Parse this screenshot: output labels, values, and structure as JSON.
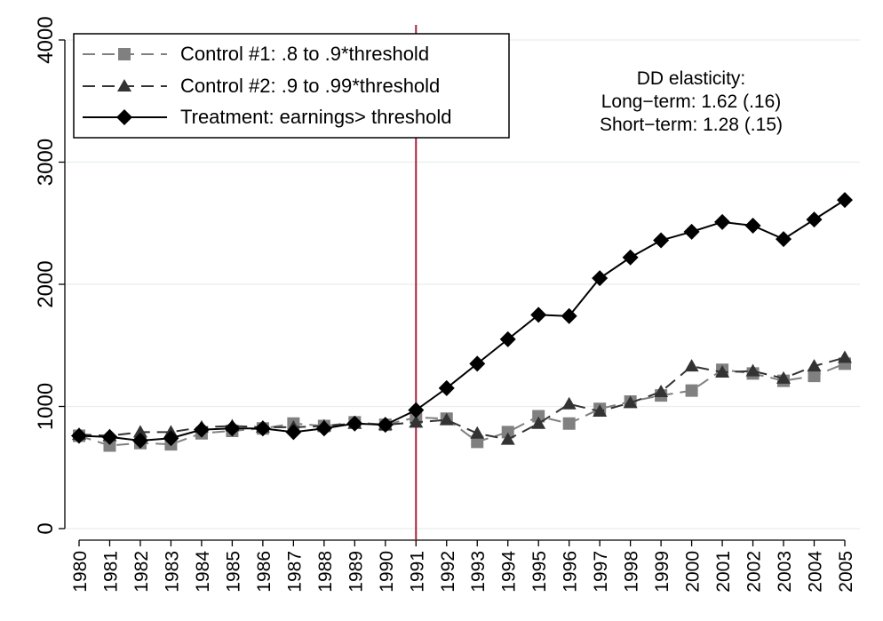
{
  "chart_data": {
    "type": "line",
    "x": [
      1980,
      1981,
      1982,
      1983,
      1984,
      1985,
      1986,
      1987,
      1988,
      1989,
      1990,
      1991,
      1992,
      1993,
      1994,
      1995,
      1996,
      1997,
      1998,
      1999,
      2000,
      2001,
      2002,
      2003,
      2004,
      2005
    ],
    "x_tick_labels": [
      "1980",
      "1981",
      "1982",
      "1983",
      "1984",
      "1985",
      "1986",
      "1987",
      "1988",
      "1989",
      "1990",
      "1991",
      "1992",
      "1993",
      "1994",
      "1995",
      "1996",
      "1997",
      "1998",
      "1999",
      "2000",
      "2001",
      "2002",
      "2003",
      "2004",
      "2005"
    ],
    "ylim": [
      0,
      4000
    ],
    "y_ticks": [
      0,
      1000,
      2000,
      3000,
      4000
    ],
    "y_tick_labels": [
      "0",
      "1000",
      "2000",
      "3000",
      "4000"
    ],
    "grid": true,
    "legend_position": "top-left",
    "vertical_line": {
      "x": 1991,
      "color": "#a4243b"
    },
    "series": [
      {
        "name": "Control #1: .8 to .9*threshold",
        "marker": "square",
        "line_style": "dashed",
        "color": "#808080",
        "values": [
          760,
          680,
          700,
          690,
          780,
          800,
          820,
          860,
          840,
          870,
          850,
          910,
          900,
          710,
          790,
          920,
          860,
          980,
          1040,
          1090,
          1130,
          1300,
          1270,
          1210,
          1250,
          1350
        ]
      },
      {
        "name": "Control #2: .9 to .99*threshold",
        "marker": "triangle",
        "line_style": "dashed",
        "color": "#333333",
        "values": [
          770,
          760,
          790,
          790,
          830,
          840,
          830,
          830,
          840,
          860,
          850,
          870,
          890,
          780,
          730,
          860,
          1020,
          960,
          1030,
          1120,
          1330,
          1280,
          1290,
          1230,
          1330,
          1400
        ]
      },
      {
        "name": "Treatment: earnings> threshold",
        "marker": "diamond",
        "line_style": "solid",
        "color": "#000000",
        "values": [
          760,
          750,
          720,
          740,
          810,
          820,
          820,
          790,
          820,
          860,
          850,
          970,
          1150,
          1350,
          1550,
          1750,
          1740,
          2050,
          2220,
          2360,
          2430,
          2510,
          2480,
          2370,
          2530,
          2690
        ]
      }
    ],
    "annotation": {
      "lines": [
        "DD elasticity:",
        "Long−term: 1.62 (.16)",
        "Short−term: 1.28 (.15)"
      ]
    }
  }
}
